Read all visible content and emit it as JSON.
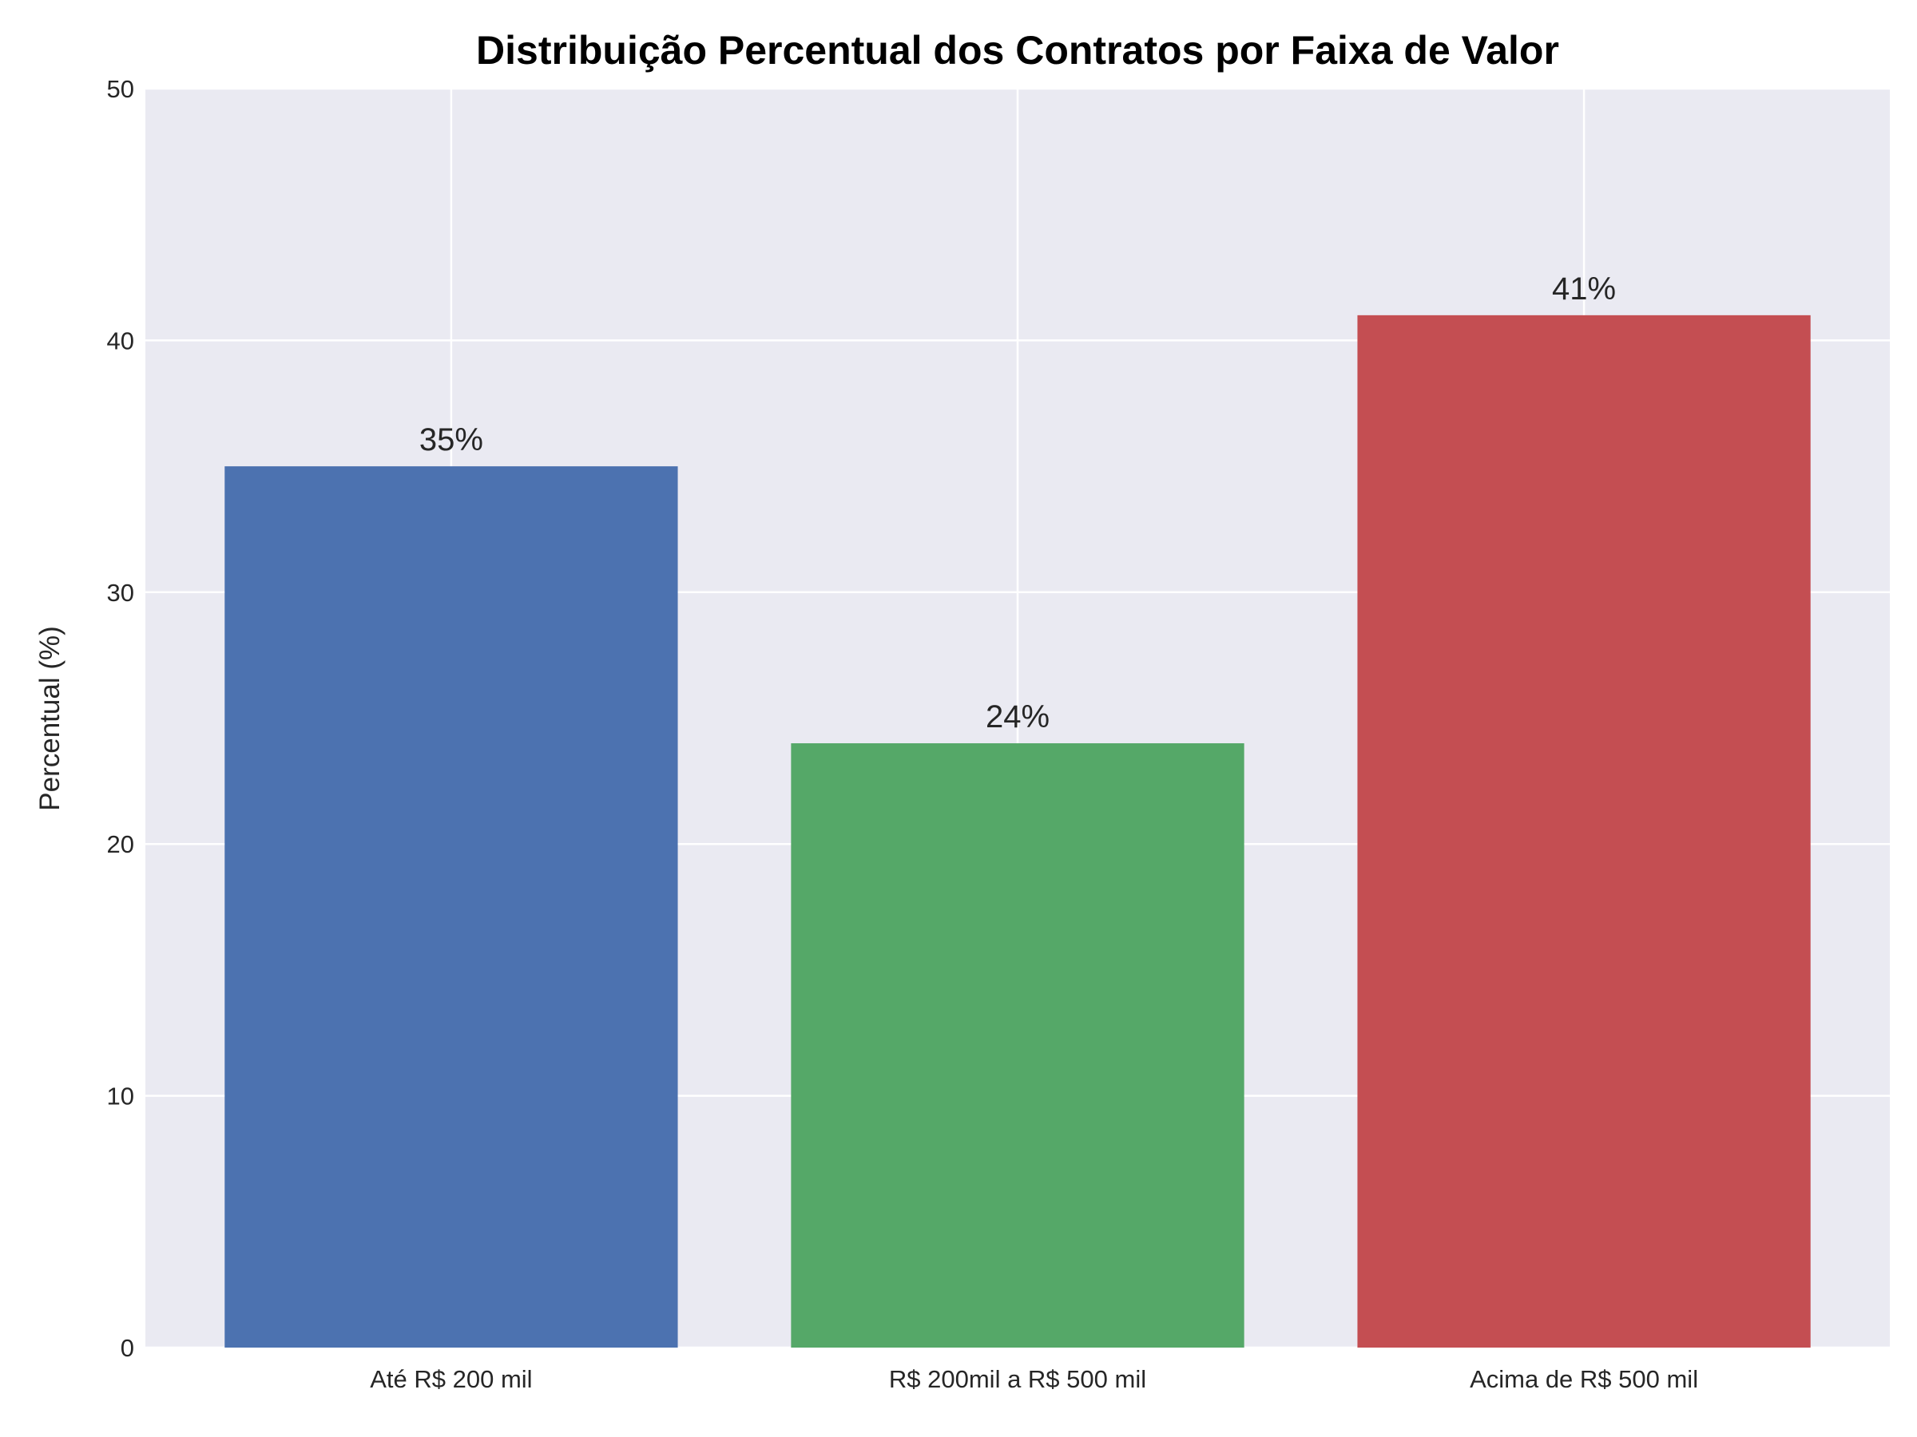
{
  "chart_data": {
    "type": "bar",
    "title": "Distribuição Percentual dos Contratos por Faixa de Valor",
    "xlabel": "",
    "ylabel": "Percentual (%)",
    "categories": [
      "Até R$ 200 mil",
      "R$ 200mil a R$ 500 mil",
      "Acima de R$ 500 mil"
    ],
    "values": [
      35,
      24,
      41
    ],
    "data_labels": [
      "35%",
      "24%",
      "41%"
    ],
    "colors": [
      "#4C72B0",
      "#55A868",
      "#C44E52"
    ],
    "ylim": [
      0,
      50
    ],
    "yticks": [
      "0",
      "10",
      "20",
      "30",
      "40",
      "50"
    ],
    "grid": true,
    "background": "#EAEAF2"
  }
}
